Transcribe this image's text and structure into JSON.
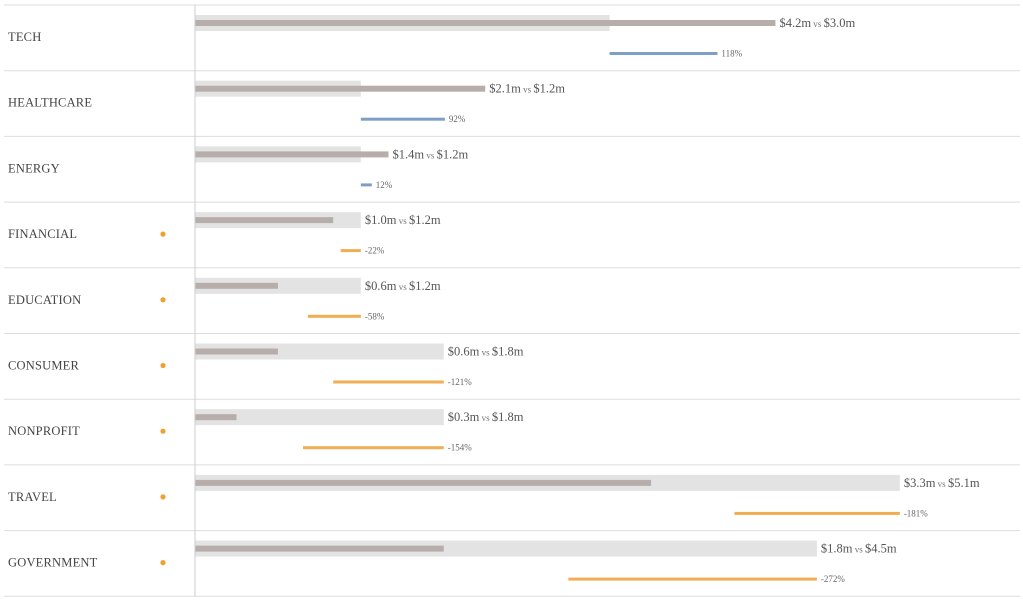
{
  "chart_data": {
    "type": "bar",
    "variant": "bullet-with-variance",
    "title": "",
    "xlabel": "",
    "ylabel": "",
    "unit": "$m",
    "xlim": [
      0,
      5.1
    ],
    "variance_scale_pct": 274,
    "grid": false,
    "legend": "none",
    "vs_text": "vs",
    "colors": {
      "target_bar": "#e3e3e3",
      "actual_bar": "#b7aeab",
      "positive_variance": "#7f9ec6",
      "negative_variance": "#f0ad52",
      "flag_dot": "#f0a030",
      "row_divider": "#dddddd",
      "axis_line": "#cccccc"
    },
    "categories": [
      "TECH",
      "HEALTHCARE",
      "ENERGY",
      "FINANCIAL",
      "EDUCATION",
      "CONSUMER",
      "NONPROFIT",
      "TRAVEL",
      "GOVERNMENT"
    ],
    "series": [
      {
        "values": [
          4.2,
          2.1,
          1.4,
          1.0,
          0.6,
          0.6,
          0.3,
          3.3,
          1.8
        ]
      },
      {
        "values": [
          3.0,
          1.2,
          1.2,
          1.2,
          1.2,
          1.8,
          1.8,
          5.1,
          4.5
        ]
      }
    ],
    "actual_labels": [
      "$4.2m",
      "$2.1m",
      "$1.4m",
      "$1.0m",
      "$0.6m",
      "$0.6m",
      "$0.3m",
      "$3.3m",
      "$1.8m"
    ],
    "target_labels": [
      "$3.0m",
      "$1.2m",
      "$1.2m",
      "$1.2m",
      "$1.2m",
      "$1.8m",
      "$1.8m",
      "$5.1m",
      "$4.5m"
    ],
    "variance_pct": [
      118,
      92,
      12,
      -22,
      -58,
      -121,
      -154,
      -181,
      -272
    ],
    "variance_labels": [
      "118%",
      "92%",
      "12%",
      "-22%",
      "-58%",
      "-121%",
      "-154%",
      "-181%",
      "-272%"
    ],
    "flagged": [
      false,
      false,
      false,
      true,
      true,
      true,
      true,
      true,
      true
    ]
  }
}
